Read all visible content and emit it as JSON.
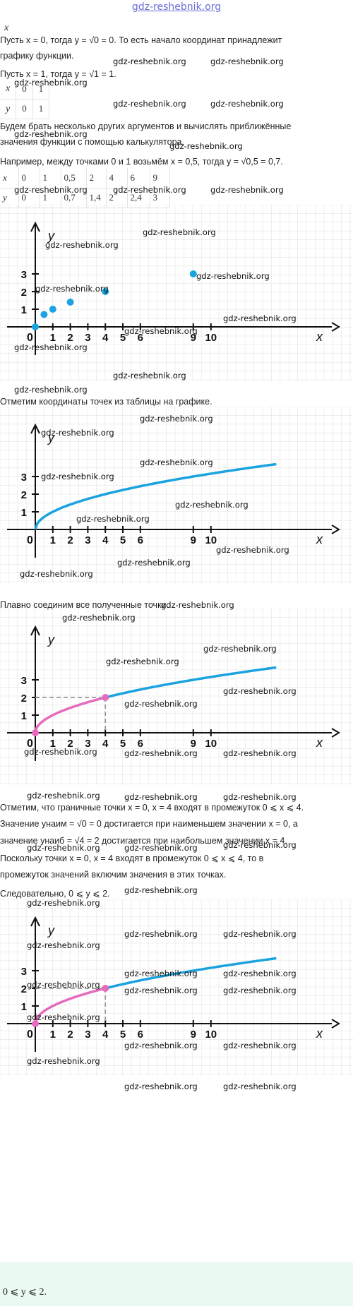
{
  "header": {
    "site_link": "gdz-reshebnik.org"
  },
  "text": {
    "x_stub": "x",
    "p1a": "Пусть x = 0, тогда y = √0 = 0. То есть начало координат принадлежит",
    "p1b": "графику функции.",
    "p2": "Пусть x = 1, тогда y = √1 = 1.",
    "p3a": "Будем брать несколько других аргументов и вычислять приближённые",
    "p3b": "значения функции с помощью калькулятора.",
    "p4": "Например, между точками 0 и 1 возьмём x = 0,5, тогда y = √0,5 = 0,7.",
    "p5": "Отметим координаты точек из таблицы на графике.",
    "p6": "Плавно соединим все полученные точки.",
    "p7": "Отметим, что граничные точки x = 0, x = 4 входят в промежуток 0 ⩽ x ⩽ 4.",
    "p8": "Значение yнаим = √0 = 0 достигается при наименьшем значении x = 0, а",
    "p9": "значение yнаиб = √4 = 2 достигается при наибольшем значении x = 4.",
    "p10a": "Поскольку точки x = 0, x = 4 входят в промежуток 0 ⩽ x ⩽ 4, то в",
    "p10b": "промежуток значений включим значения в этих точках.",
    "p11": "Следовательно, 0 ⩽ y ⩽ 2.",
    "answer": "0 ⩽ y ⩽ 2."
  },
  "table_small": {
    "row_x": [
      "x",
      "0",
      "1"
    ],
    "row_y": [
      "y",
      "0",
      "1"
    ]
  },
  "table_big": {
    "row_x": [
      "x",
      "0",
      "1",
      "0,5",
      "2",
      "4",
      "6",
      "9"
    ],
    "row_y": [
      "y",
      "0",
      "1",
      "0,7",
      "1,4",
      "2",
      "2,4",
      "3"
    ]
  },
  "graph": {
    "axis_x_label": "x",
    "axis_y_label": "y",
    "origin_label": "0",
    "x_ticks": [
      "1",
      "2",
      "3",
      "4",
      "5",
      "6",
      "9",
      "10"
    ],
    "y_ticks": [
      "1",
      "2",
      "3"
    ],
    "colors": {
      "curve": "#1aa3df",
      "highlight": "#e66bbd",
      "dashed": "#999999",
      "grid": "#e4e4e4"
    }
  },
  "chart_data": [
    {
      "type": "scatter",
      "series": [
        {
          "x": [
            0,
            0.5,
            1,
            2,
            4,
            9
          ],
          "y": [
            0,
            0.7,
            1,
            1.4,
            2,
            3
          ]
        }
      ],
      "xlabel": "x",
      "ylabel": "y",
      "xlim": [
        0,
        10
      ],
      "ylim": [
        0,
        3
      ]
    },
    {
      "type": "line",
      "function": "y = √x",
      "xlabel": "x",
      "ylabel": "y",
      "xlim": [
        0,
        13.5
      ],
      "ylim": [
        0,
        3.7
      ]
    },
    {
      "type": "line",
      "function": "y = √x",
      "highlight_interval": [
        0,
        4
      ],
      "highlight_endpoints": [
        {
          "x": 0,
          "y": 0
        },
        {
          "x": 4,
          "y": 2
        }
      ],
      "xlabel": "x",
      "ylabel": "y",
      "xlim": [
        0,
        13.5
      ],
      "ylim": [
        0,
        3.7
      ]
    },
    {
      "type": "line",
      "function": "y = √x",
      "highlight_interval": [
        0,
        4
      ],
      "highlight_endpoints": [
        {
          "x": 0,
          "y": 0
        },
        {
          "x": 4,
          "y": 2
        }
      ],
      "xlabel": "x",
      "ylabel": "y",
      "xlim": [
        0,
        13.5
      ],
      "ylim": [
        0,
        3.7
      ]
    }
  ],
  "watermark": "gdz-reshebnik.org"
}
